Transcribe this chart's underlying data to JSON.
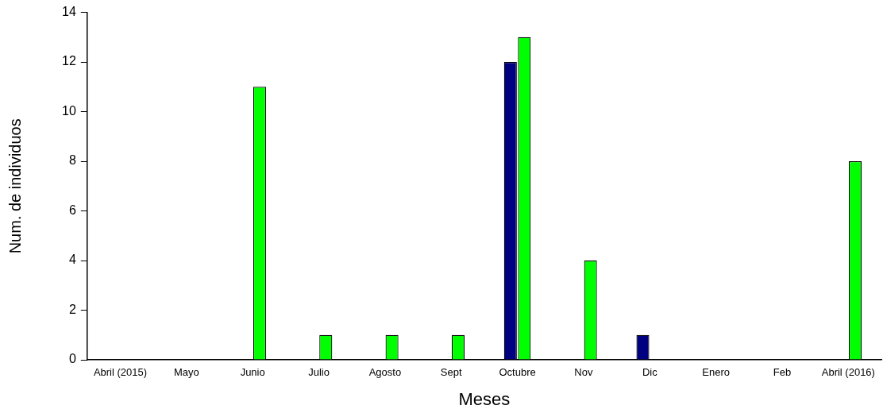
{
  "chart_data": {
    "type": "bar",
    "xlabel": "Meses",
    "ylabel": "Num. de individuos",
    "categories": [
      "Abril (2015)",
      "Mayo",
      "Junio",
      "Julio",
      "Agosto",
      "Sept",
      "Octubre",
      "Nov",
      "Dic",
      "Enero",
      "Feb",
      "Abril (2016)"
    ],
    "series": [
      {
        "color": "#000080",
        "values": [
          null,
          null,
          null,
          null,
          null,
          null,
          12,
          null,
          1,
          null,
          null,
          null
        ]
      },
      {
        "color": "#00ff00",
        "values": [
          null,
          null,
          11,
          1,
          1,
          1,
          13,
          4,
          null,
          null,
          null,
          8
        ]
      }
    ],
    "ylim": [
      0,
      14
    ],
    "yticks": [
      0,
      2,
      4,
      6,
      8,
      10,
      12,
      14
    ],
    "grid": false,
    "legend": false
  }
}
